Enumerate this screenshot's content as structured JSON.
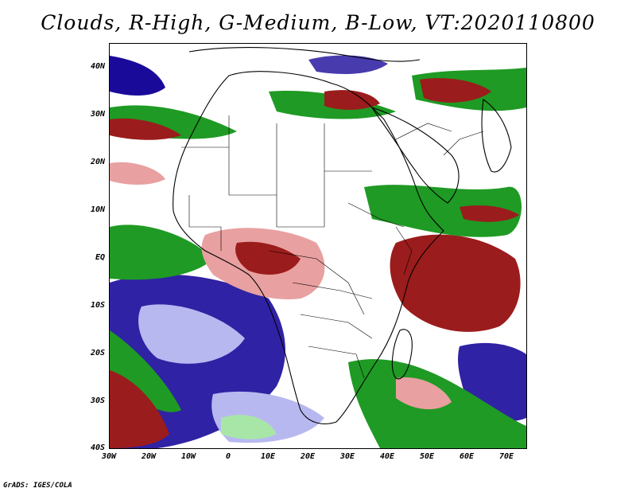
{
  "title": "Clouds, R-High, G-Medium, B-Low, VT:2020110800",
  "credit": "GrADS: IGES/COLA",
  "colors": {
    "high_cloud": "#9b1c1c",
    "high_cloud_light": "#e8a0a0",
    "medium_cloud": "#1f9a24",
    "medium_cloud_light": "#a8e6a8",
    "low_cloud": "#1a0a9a",
    "low_cloud_light": "#b8b8f0",
    "background": "#ffffff",
    "coastline": "#000000"
  },
  "axes": {
    "lat_labels": [
      "40N",
      "30N",
      "20N",
      "10N",
      "EQ",
      "10S",
      "20S",
      "30S",
      "40S"
    ],
    "lon_labels": [
      "30W",
      "20W",
      "10W",
      "0",
      "10E",
      "20E",
      "30E",
      "40E",
      "50E",
      "60E",
      "70E"
    ]
  }
}
